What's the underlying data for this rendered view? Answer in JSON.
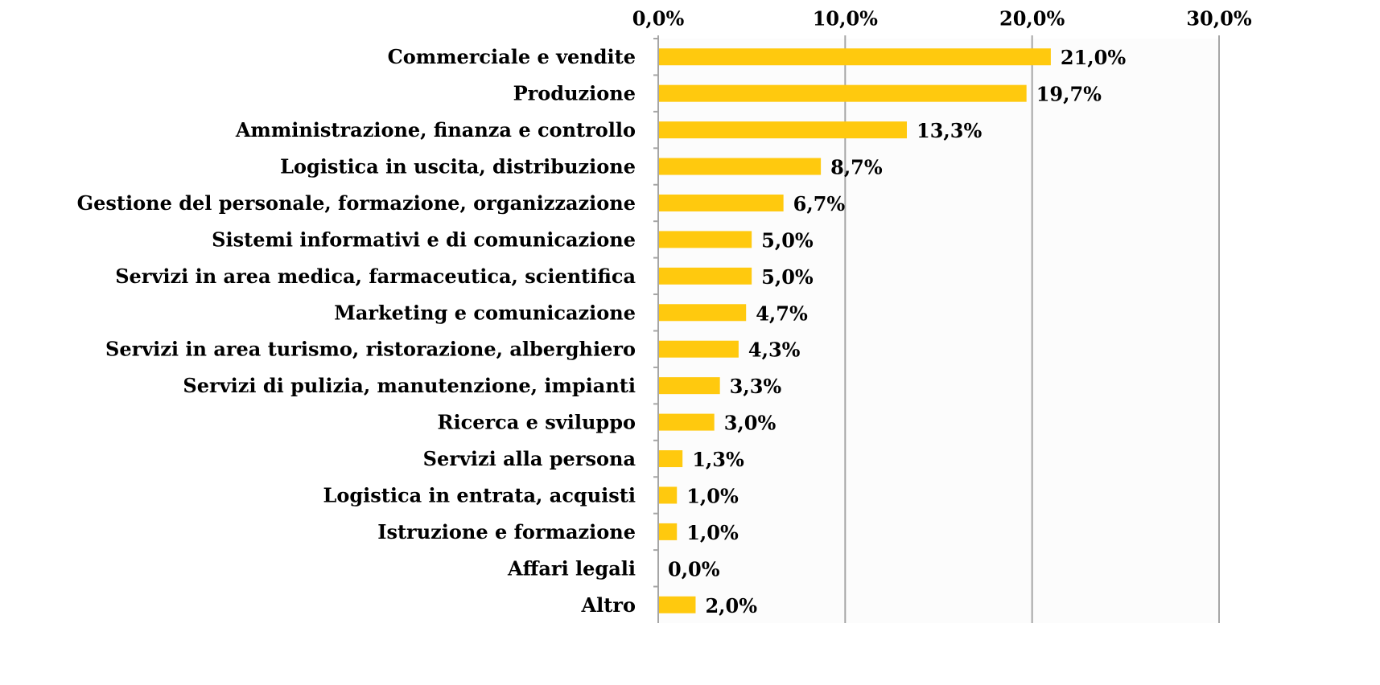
{
  "chart_data": {
    "type": "barh",
    "categories": [
      "Commerciale e vendite",
      "Produzione",
      "Amministrazione, finanza e controllo",
      "Logistica in uscita, distribuzione",
      "Gestione del personale, formazione, organizzazione",
      "Sistemi informativi e di comunicazione",
      "Servizi in area medica, farmaceutica, scientifica",
      "Marketing e comunicazione",
      "Servizi in area turismo, ristorazione, alberghiero",
      "Servizi di pulizia, manutenzione, impianti",
      "Ricerca e sviluppo",
      "Servizi alla persona",
      "Logistica in entrata, acquisti",
      "Istruzione e formazione",
      "Affari legali",
      "Altro"
    ],
    "values": [
      21.0,
      19.7,
      13.3,
      8.7,
      6.7,
      5.0,
      5.0,
      4.7,
      4.3,
      3.3,
      3.0,
      1.3,
      1.0,
      1.0,
      0.0,
      2.0
    ],
    "value_labels": [
      "21,0%",
      "19,7%",
      "13,3%",
      "8,7%",
      "6,7%",
      "5,0%",
      "5,0%",
      "4,7%",
      "4,3%",
      "3,3%",
      "3,0%",
      "1,3%",
      "1,0%",
      "1,0%",
      "0,0%",
      "2,0%"
    ],
    "color": "#ffc90e",
    "xlim": [
      0,
      30
    ],
    "xticks": [
      {
        "value": 0,
        "label": "0,0%"
      },
      {
        "value": 10,
        "label": "10,0%"
      },
      {
        "value": 20,
        "label": "20,0%"
      },
      {
        "value": 30,
        "label": "30,0%"
      }
    ],
    "grid": true
  }
}
